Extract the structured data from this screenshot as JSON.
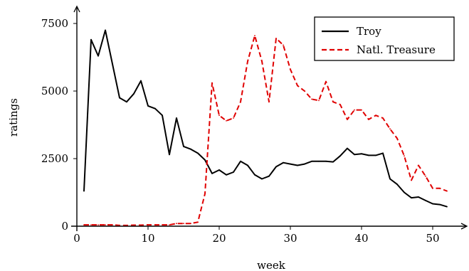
{
  "chart_data": {
    "type": "line",
    "xlabel": "week",
    "ylabel": "ratings",
    "xlim": [
      0,
      53
    ],
    "ylim": [
      0,
      7500
    ],
    "xticks": [
      0,
      10,
      20,
      30,
      40,
      50
    ],
    "yticks": [
      0,
      2500,
      5000,
      7500
    ],
    "grid": false,
    "legend_position": "top-right",
    "series": [
      {
        "name": "Troy",
        "color": "#000000",
        "style": "solid",
        "x": [
          1,
          2,
          3,
          4,
          5,
          6,
          7,
          8,
          9,
          10,
          11,
          12,
          13,
          14,
          15,
          16,
          17,
          18,
          19,
          20,
          21,
          22,
          23,
          24,
          25,
          26,
          27,
          28,
          29,
          30,
          31,
          32,
          33,
          34,
          35,
          36,
          37,
          38,
          39,
          40,
          41,
          42,
          43,
          44,
          45,
          46,
          47,
          48,
          49,
          50,
          51,
          52
        ],
        "y": [
          1300,
          6900,
          6300,
          7250,
          6000,
          4750,
          4600,
          4900,
          5380,
          4450,
          4350,
          4100,
          2650,
          4000,
          2950,
          2850,
          2700,
          2450,
          1950,
          2080,
          1900,
          2000,
          2400,
          2250,
          1900,
          1750,
          1850,
          2200,
          2350,
          2300,
          2250,
          2300,
          2400,
          2400,
          2400,
          2380,
          2600,
          2880,
          2650,
          2680,
          2620,
          2620,
          2700,
          1750,
          1550,
          1250,
          1050,
          1080,
          950,
          830,
          800,
          720
        ]
      },
      {
        "name": "Natl. Treasure",
        "color": "#e00000",
        "style": "dashed",
        "x": [
          1,
          2,
          3,
          4,
          5,
          6,
          7,
          8,
          9,
          10,
          11,
          12,
          13,
          14,
          15,
          16,
          17,
          18,
          19,
          20,
          21,
          22,
          23,
          24,
          25,
          26,
          27,
          28,
          29,
          30,
          31,
          32,
          33,
          34,
          35,
          36,
          37,
          38,
          39,
          40,
          41,
          42,
          43,
          44,
          45,
          46,
          47,
          48,
          49,
          50,
          51,
          52
        ],
        "y": [
          50,
          50,
          50,
          50,
          50,
          30,
          30,
          40,
          40,
          50,
          50,
          50,
          50,
          100,
          100,
          100,
          150,
          1200,
          5300,
          4100,
          3900,
          4000,
          4600,
          6100,
          7050,
          6100,
          4600,
          6950,
          6700,
          5800,
          5200,
          5000,
          4700,
          4650,
          5350,
          4600,
          4500,
          3950,
          4300,
          4300,
          3950,
          4100,
          4000,
          3600,
          3250,
          2600,
          1700,
          2250,
          1850,
          1400,
          1400,
          1300
        ]
      }
    ]
  }
}
